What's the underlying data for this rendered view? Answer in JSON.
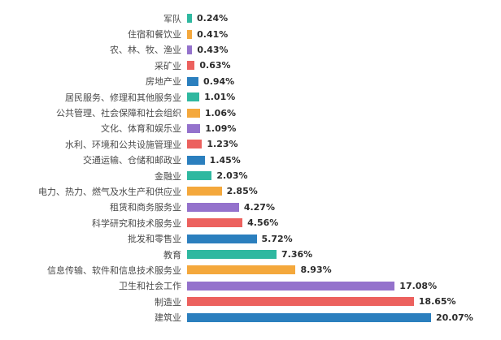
{
  "chart_data": {
    "type": "bar",
    "orientation": "horizontal",
    "title": "",
    "xlabel": "",
    "ylabel": "",
    "xlim": [
      0,
      21
    ],
    "grid": false,
    "legend_position": "none",
    "categories": [
      "军队",
      "住宿和餐饮业",
      "农、林、牧、渔业",
      "采矿业",
      "房地产业",
      "居民服务、修理和其他服务业",
      "公共管理、社会保障和社会组织",
      "文化、体育和娱乐业",
      "水利、环境和公共设施管理业",
      "交通运输、仓储和邮政业",
      "金融业",
      "电力、热力、燃气及水生产和供应业",
      "租赁和商务服务业",
      "科学研究和技术服务业",
      "批发和零售业",
      "教育",
      "信息传输、软件和信息技术服务业",
      "卫生和社会工作",
      "制造业",
      "建筑业"
    ],
    "values": [
      0.24,
      0.41,
      0.43,
      0.63,
      0.94,
      1.01,
      1.06,
      1.09,
      1.23,
      1.45,
      2.03,
      2.85,
      4.27,
      4.56,
      5.72,
      7.36,
      8.93,
      17.08,
      18.65,
      20.07
    ],
    "value_labels": [
      "0.24%",
      "0.41%",
      "0.43%",
      "0.63%",
      "0.94%",
      "1.01%",
      "1.06%",
      "1.09%",
      "1.23%",
      "1.45%",
      "2.03%",
      "2.85%",
      "4.27%",
      "4.56%",
      "5.72%",
      "7.36%",
      "8.93%",
      "17.08%",
      "18.65%",
      "20.07%"
    ],
    "palette": [
      "#2fb8a0",
      "#f4a83c",
      "#9472cc",
      "#ec615e",
      "#2b7fbe"
    ],
    "max_value": 20.07
  }
}
